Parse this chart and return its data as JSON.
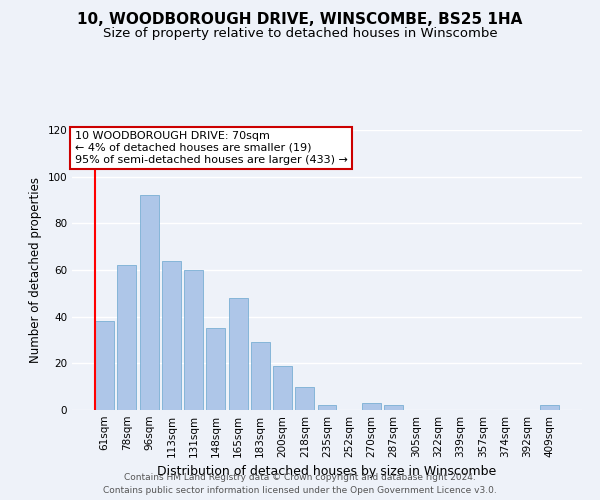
{
  "title": "10, WOODBOROUGH DRIVE, WINSCOMBE, BS25 1HA",
  "subtitle": "Size of property relative to detached houses in Winscombe",
  "xlabel": "Distribution of detached houses by size in Winscombe",
  "ylabel": "Number of detached properties",
  "bar_labels": [
    "61sqm",
    "78sqm",
    "96sqm",
    "113sqm",
    "131sqm",
    "148sqm",
    "165sqm",
    "183sqm",
    "200sqm",
    "218sqm",
    "235sqm",
    "252sqm",
    "270sqm",
    "287sqm",
    "305sqm",
    "322sqm",
    "339sqm",
    "357sqm",
    "374sqm",
    "392sqm",
    "409sqm"
  ],
  "bar_values": [
    38,
    62,
    92,
    64,
    60,
    35,
    48,
    29,
    19,
    10,
    2,
    0,
    3,
    2,
    0,
    0,
    0,
    0,
    0,
    0,
    2
  ],
  "bar_color": "#aec6e8",
  "bar_edge_color": "#7aafd4",
  "ylim": [
    0,
    120
  ],
  "annotation_line1": "10 WOODBOROUGH DRIVE: 70sqm",
  "annotation_line2": "← 4% of detached houses are smaller (19)",
  "annotation_line3": "95% of semi-detached houses are larger (433) →",
  "annotation_box_facecolor": "#ffffff",
  "annotation_box_edgecolor": "#cc0000",
  "footer_line1": "Contains HM Land Registry data © Crown copyright and database right 2024.",
  "footer_line2": "Contains public sector information licensed under the Open Government Licence v3.0.",
  "background_color": "#eef2f9",
  "grid_color": "#ffffff",
  "title_fontsize": 11,
  "subtitle_fontsize": 9.5,
  "tick_fontsize": 7.5,
  "ylabel_fontsize": 8.5,
  "xlabel_fontsize": 9,
  "annotation_fontsize": 8,
  "footer_fontsize": 6.5
}
